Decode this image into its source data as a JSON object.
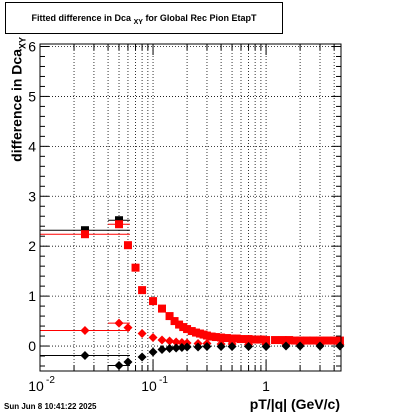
{
  "title": {
    "main": "Fitted difference in Dca",
    "sub": "XY",
    "rest": "for Global Rec Pion EtapT"
  },
  "axis": {
    "ylabel_main": "difference in Dca",
    "ylabel_sub": "XY",
    "xlabel": "pT/|q| (GeV/c)"
  },
  "datestamp": "Sun Jun  8 10:41:22 2025",
  "colors": {
    "black": "#000000",
    "red": "#ff0000",
    "grid": "#000000"
  },
  "chart_data": {
    "type": "scatter",
    "xscale": "log",
    "xlim": [
      0.01,
      4.6
    ],
    "ylim": [
      -0.5,
      6.05
    ],
    "grid": true,
    "x_ticks": [
      {
        "value": 0.01,
        "label": "10",
        "exp": "-2"
      },
      {
        "value": 0.1,
        "label": "10",
        "exp": "-1"
      },
      {
        "value": 1,
        "label": "1",
        "exp": ""
      }
    ],
    "y_ticks": [
      0,
      1,
      2,
      3,
      4,
      5,
      6
    ],
    "series": [
      {
        "color": "black",
        "marker": "square",
        "x": [
          0.025,
          0.05
        ],
        "y": [
          2.32,
          2.52
        ],
        "xlo": [
          0.01,
          0.04
        ]
      },
      {
        "color": "red",
        "marker": "square",
        "x": [
          0.025,
          0.05,
          0.06,
          0.07,
          0.08,
          0.1,
          0.12,
          0.14,
          0.155,
          0.17,
          0.185,
          0.2,
          0.22,
          0.24,
          0.26,
          0.28,
          0.3,
          0.33,
          0.36,
          0.4,
          0.45,
          0.5,
          0.55,
          0.6,
          0.7,
          0.8,
          0.9,
          1.0,
          1.2,
          1.4,
          1.6,
          1.8,
          2.0,
          2.3,
          2.6,
          3.0,
          3.5,
          4.0,
          4.5
        ],
        "y": [
          2.24,
          2.44,
          2.02,
          1.57,
          1.12,
          0.9,
          0.75,
          0.6,
          0.5,
          0.43,
          0.38,
          0.34,
          0.3,
          0.27,
          0.25,
          0.23,
          0.21,
          0.19,
          0.18,
          0.17,
          0.16,
          0.15,
          0.15,
          0.14,
          0.14,
          0.13,
          0.13,
          0.12,
          0.12,
          0.12,
          0.12,
          0.11,
          0.11,
          0.11,
          0.11,
          0.11,
          0.11,
          0.11,
          0.11
        ],
        "xlo": [
          0.01,
          0.04
        ]
      },
      {
        "color": "red",
        "marker": "diamond",
        "x": [
          0.025,
          0.05,
          0.06,
          0.08,
          0.1,
          0.12,
          0.14,
          0.16,
          0.18,
          0.2,
          0.25,
          0.3,
          0.4,
          0.5,
          0.7,
          1.0,
          1.5,
          2.0,
          3.0,
          4.5
        ],
        "y": [
          0.31,
          0.46,
          0.37,
          0.25,
          0.17,
          0.12,
          0.1,
          0.08,
          0.07,
          0.06,
          0.05,
          0.05,
          0.04,
          0.04,
          0.03,
          0.03,
          0.03,
          0.03,
          0.03,
          0.03
        ],
        "xlo": [
          0.01,
          0.04
        ]
      },
      {
        "color": "black",
        "marker": "diamond",
        "x": [
          0.025,
          0.05,
          0.06,
          0.08,
          0.1,
          0.12,
          0.14,
          0.16,
          0.18,
          0.2,
          0.25,
          0.3,
          0.4,
          0.5,
          0.7,
          1.0,
          1.5,
          2.0,
          3.0,
          4.5
        ],
        "y": [
          -0.19,
          -0.39,
          -0.32,
          -0.22,
          -0.12,
          -0.07,
          -0.05,
          -0.04,
          -0.03,
          -0.02,
          -0.02,
          -0.01,
          -0.01,
          -0.01,
          -0.01,
          -0.01,
          0.0,
          0.0,
          0.0,
          0.0
        ],
        "xlo": [
          0.01,
          0.04
        ]
      }
    ]
  }
}
